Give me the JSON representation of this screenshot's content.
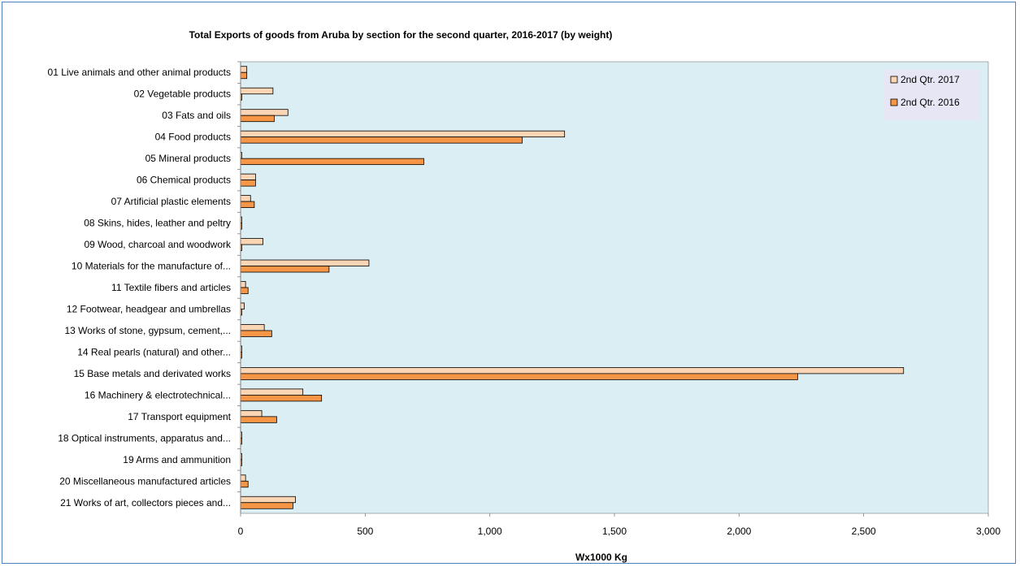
{
  "chart_data": {
    "type": "bar",
    "orientation": "horizontal",
    "title": "Total Exports of goods from Aruba by section for the second quarter, 2016-2017 (by weight)",
    "xlabel": "Wx1000 Kg",
    "ylabel": "",
    "xlim": [
      0,
      3000
    ],
    "xticks": [
      0,
      500,
      1000,
      1500,
      2000,
      2500,
      3000
    ],
    "xtick_labels": [
      "0",
      "500",
      "1,000",
      "1,500",
      "2,000",
      "2,500",
      "3,000"
    ],
    "grid": false,
    "legend_position": "top-right",
    "plot_background": "#daeef3",
    "categories": [
      "01 Live animals and other animal products",
      "02 Vegetable products",
      "03 Fats and oils",
      "04 Food products",
      "05 Mineral products",
      "06 Chemical products",
      "07 Artificial plastic elements",
      "08 Skins, hides, leather and peltry",
      "09 Wood, charcoal and woodwork",
      "10 Materials for the manufacture of...",
      "11 Textile fibers and articles",
      "12 Footwear, headgear and umbrellas",
      "13 Works of stone, gypsum, cement,...",
      "14 Real pearls (natural) and other...",
      "15 Base metals and derivated works",
      "16 Machinery & electrotechnical...",
      "17 Transport equipment",
      "18 Optical instruments, apparatus and...",
      "19 Arms and ammunition",
      "20 Miscellaneous manufactured articles",
      "21 Works of art, collectors pieces and..."
    ],
    "series": [
      {
        "name": "2nd Qtr. 2017",
        "color": "#fcd5b5",
        "values": [
          25,
          130,
          190,
          1300,
          5,
          60,
          40,
          3,
          90,
          515,
          20,
          15,
          95,
          3,
          2660,
          250,
          85,
          3,
          1,
          20,
          220
        ]
      },
      {
        "name": "2nd Qtr. 2016",
        "color": "#f79646",
        "values": [
          25,
          5,
          135,
          1130,
          735,
          60,
          55,
          3,
          5,
          355,
          30,
          5,
          125,
          2,
          2235,
          325,
          145,
          3,
          3,
          30,
          210
        ]
      }
    ]
  }
}
